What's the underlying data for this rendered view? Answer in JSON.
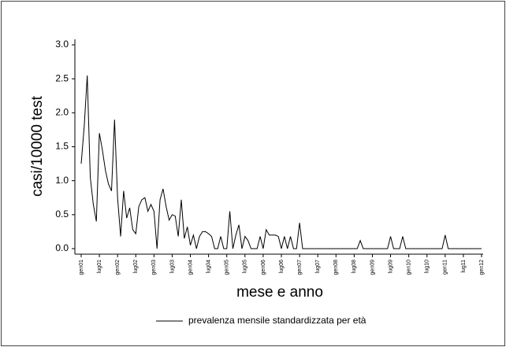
{
  "chart_data": {
    "type": "line",
    "xlabel": "mese e anno",
    "ylabel": "casi/10000 test",
    "categories": [
      "gen01",
      null,
      null,
      null,
      null,
      null,
      "lug01",
      null,
      null,
      null,
      null,
      null,
      "gen02",
      null,
      null,
      null,
      null,
      null,
      "lug02",
      null,
      null,
      null,
      null,
      null,
      "gen03",
      null,
      null,
      null,
      null,
      null,
      "lug03",
      null,
      null,
      null,
      null,
      null,
      "gen04",
      null,
      null,
      null,
      null,
      null,
      "lug04",
      null,
      null,
      null,
      null,
      null,
      "gen05",
      null,
      null,
      null,
      null,
      null,
      "lug05",
      null,
      null,
      null,
      null,
      null,
      "gen06",
      null,
      null,
      null,
      null,
      null,
      "lug06",
      null,
      null,
      null,
      null,
      null,
      "gen07",
      null,
      null,
      null,
      null,
      null,
      "lug07",
      null,
      null,
      null,
      null,
      null,
      "gen08",
      null,
      null,
      null,
      null,
      null,
      "lug08",
      null,
      null,
      null,
      null,
      null,
      "gen09",
      null,
      null,
      null,
      null,
      null,
      "lug09",
      null,
      null,
      null,
      null,
      null,
      "gen10",
      null,
      null,
      null,
      null,
      null,
      "lug10",
      null,
      null,
      null,
      null,
      null,
      "gen11",
      null,
      null,
      null,
      null,
      null,
      "lug11",
      null,
      null,
      null,
      null,
      null,
      "gen12"
    ],
    "series": [
      {
        "name": "prevalenza mensile standardizzata per età",
        "color": "#000000",
        "values": [
          1.25,
          1.8,
          2.55,
          1.05,
          0.65,
          0.4,
          1.7,
          1.45,
          1.15,
          0.95,
          0.85,
          1.9,
          0.75,
          0.18,
          0.85,
          0.45,
          0.6,
          0.28,
          0.22,
          0.62,
          0.72,
          0.75,
          0.55,
          0.65,
          0.55,
          0.0,
          0.72,
          0.88,
          0.62,
          0.42,
          0.5,
          0.48,
          0.18,
          0.72,
          0.15,
          0.32,
          0.05,
          0.2,
          0.0,
          0.18,
          0.25,
          0.25,
          0.22,
          0.18,
          0.0,
          0.0,
          0.18,
          0.0,
          0.0,
          0.55,
          0.0,
          0.2,
          0.35,
          0.0,
          0.18,
          0.12,
          0.0,
          0.0,
          0.0,
          0.18,
          0.0,
          0.28,
          0.2,
          0.2,
          0.2,
          0.18,
          0.0,
          0.18,
          0.0,
          0.18,
          0.0,
          0.0,
          0.38,
          0,
          0,
          0,
          0,
          0,
          0,
          0,
          0,
          0,
          0,
          0,
          0,
          0,
          0,
          0,
          0,
          0,
          0,
          0,
          0.12,
          0,
          0,
          0,
          0,
          0,
          0,
          0,
          0,
          0,
          0.18,
          0,
          0,
          0,
          0.18,
          0,
          0,
          0,
          0,
          0,
          0,
          0,
          0,
          0,
          0,
          0,
          0,
          0,
          0.2,
          0,
          0,
          0,
          0,
          0,
          0,
          0,
          0,
          0,
          0,
          0,
          0
        ]
      }
    ],
    "ylim": [
      0,
      3.0
    ],
    "yticks": [
      {
        "value": 0,
        "label": "0.0"
      },
      {
        "value": 0.5,
        "label": "0.5"
      },
      {
        "value": 1,
        "label": "1.0"
      },
      {
        "value": 1.5,
        "label": "1.5"
      },
      {
        "value": 2,
        "label": "2.0"
      },
      {
        "value": 2.5,
        "label": "2.5"
      },
      {
        "value": 3,
        "label": "3.0"
      }
    ],
    "grid": false
  }
}
